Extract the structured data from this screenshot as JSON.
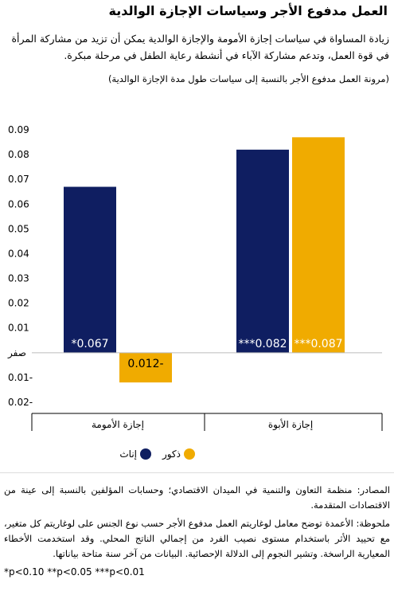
{
  "header": {
    "title": "العمل مدفوع الأجر وسياسات الإجازة الوالدية",
    "subtitle": "زيادة المساواة في سياسات إجازة الأمومة والإجازة الوالدية يمكن أن تزيد من مشاركة المرأة في قوة العمل، وتدعم مشاركة الآباء في أنشطة رعاية الطفل في مرحلة مبكرة.",
    "chart_note": "(مرونة العمل مدفوع الأجر بالنسبة إلى سياسات طول مدة الإجازة الوالدية)"
  },
  "colors": {
    "female": "#0f1e61",
    "male": "#f0ab00"
  },
  "chart_data": {
    "type": "bar",
    "categories": [
      "إجازة الأمومة",
      "إجازة الأبوة"
    ],
    "series": [
      {
        "name": "إناث",
        "values": [
          0.067,
          0.082
        ],
        "labels": [
          "*0.067",
          "***0.082"
        ]
      },
      {
        "name": "ذكور",
        "values": [
          -0.012,
          0.087
        ],
        "labels": [
          "0.012-",
          "***0.087"
        ]
      }
    ],
    "ylim": [
      -0.02,
      0.09
    ],
    "yticks": [
      {
        "value": 0.09,
        "label": "0.09"
      },
      {
        "value": 0.08,
        "label": "0.08"
      },
      {
        "value": 0.07,
        "label": "0.07"
      },
      {
        "value": 0.06,
        "label": "0.06"
      },
      {
        "value": 0.05,
        "label": "0.05"
      },
      {
        "value": 0.04,
        "label": "0.04"
      },
      {
        "value": 0.03,
        "label": "0.03"
      },
      {
        "value": 0.02,
        "label": "0.02"
      },
      {
        "value": 0.01,
        "label": "0.01"
      },
      {
        "value": 0,
        "label": "صفر"
      },
      {
        "value": -0.01,
        "label": "0.01-"
      },
      {
        "value": -0.02,
        "label": "0.02-"
      }
    ],
    "legend": [
      "إناث",
      "ذكور"
    ]
  },
  "footer": {
    "sources": "المصادر: منظمة التعاون والتنمية في الميدان الاقتصادي؛ وحسابات المؤلفين بالنسبة إلى عينة من الاقتصادات المتقدمة.",
    "note": "ملحوظة: الأعمدة توضح معامل لوغاريتم العمل مدفوع الأجر حسب نوع الجنس على لوغاريتم كل متغير، مع تحييد الأثر باستخدام مستوى نصيب الفرد من إجمالي الناتج المحلي. وقد استخدمت الأخطاء المعيارية الراسخة. وتشير النجوم إلى الدلالة الإحصائية. البيانات من آخر سنة متاحة بياناتها.",
    "significance": "*p<0.10  **p<0.05  ***p<0.01"
  }
}
